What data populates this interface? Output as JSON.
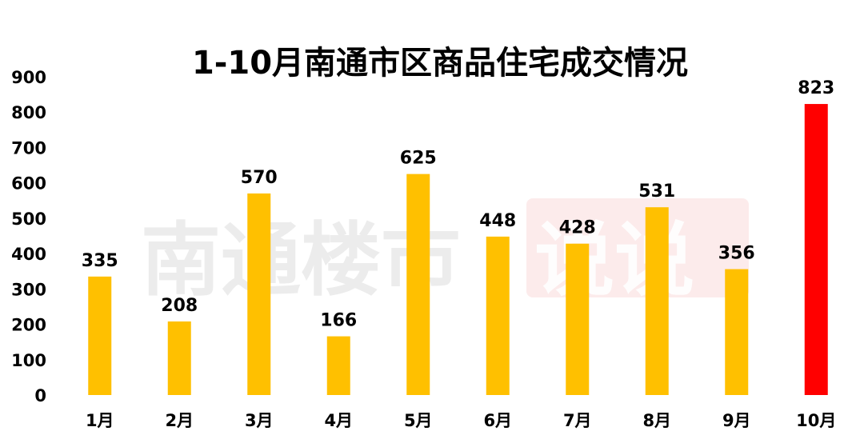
{
  "chart_data": {
    "type": "bar",
    "title": "1-10月南通市区商品住宅成交情况",
    "categories": [
      "1月",
      "2月",
      "3月",
      "4月",
      "5月",
      "6月",
      "7月",
      "8月",
      "9月",
      "10月"
    ],
    "values": [
      335,
      208,
      570,
      166,
      625,
      448,
      428,
      531,
      356,
      823
    ],
    "ylim": [
      0,
      900
    ],
    "yticks": [
      0,
      100,
      200,
      300,
      400,
      500,
      600,
      700,
      800,
      900
    ],
    "grid": false,
    "bar_color": "#ffc000",
    "highlight_color": "#ff0000",
    "highlight_index": 9
  },
  "watermark": {
    "text_dark": "南通楼市",
    "text_light": "说说",
    "color": "#e23b3b"
  }
}
